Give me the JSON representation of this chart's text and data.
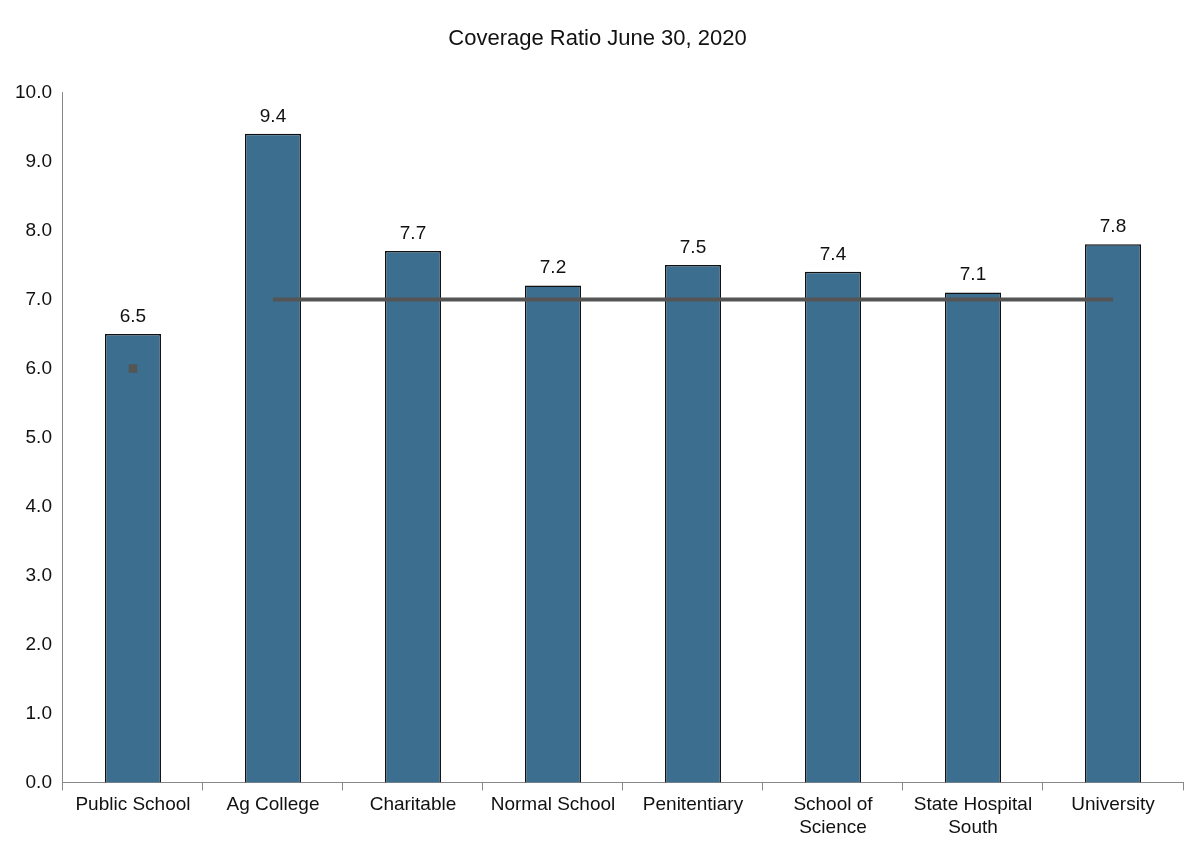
{
  "chart_data": {
    "type": "bar",
    "title": "Coverage Ratio June 30, 2020",
    "categories": [
      "Public School",
      "Ag College",
      "Charitable",
      "Normal School",
      "Penitentiary",
      "School of Science",
      "State Hospital South",
      "University"
    ],
    "series": [
      {
        "type": "bar",
        "color": "#3b6e8f",
        "values": [
          6.5,
          9.4,
          7.7,
          7.2,
          7.5,
          7.4,
          7.1,
          7.8
        ],
        "value_labels": [
          "6.5",
          "9.4",
          "7.7",
          "7.2",
          "7.5",
          "7.4",
          "7.1",
          "7.8"
        ]
      },
      {
        "type": "line",
        "color": "#555555",
        "marker": "square",
        "values": [
          6.0,
          null,
          null,
          null,
          null,
          null,
          null,
          null
        ]
      },
      {
        "type": "line",
        "color": "#555555",
        "values": [
          null,
          7.0,
          7.0,
          7.0,
          7.0,
          7.0,
          7.0,
          7.0
        ]
      }
    ],
    "ylim": [
      0,
      10
    ],
    "yticks": [
      {
        "value": 0,
        "label": "0.0"
      },
      {
        "value": 1,
        "label": "1.0"
      },
      {
        "value": 2,
        "label": "2.0"
      },
      {
        "value": 3,
        "label": "3.0"
      },
      {
        "value": 4,
        "label": "4.0"
      },
      {
        "value": 5,
        "label": "5.0"
      },
      {
        "value": 6,
        "label": "6.0"
      },
      {
        "value": 7,
        "label": "7.0"
      },
      {
        "value": 8,
        "label": "8.0"
      },
      {
        "value": 9,
        "label": "9.0"
      },
      {
        "value": 10,
        "label": "10.0"
      }
    ],
    "legend": false
  }
}
